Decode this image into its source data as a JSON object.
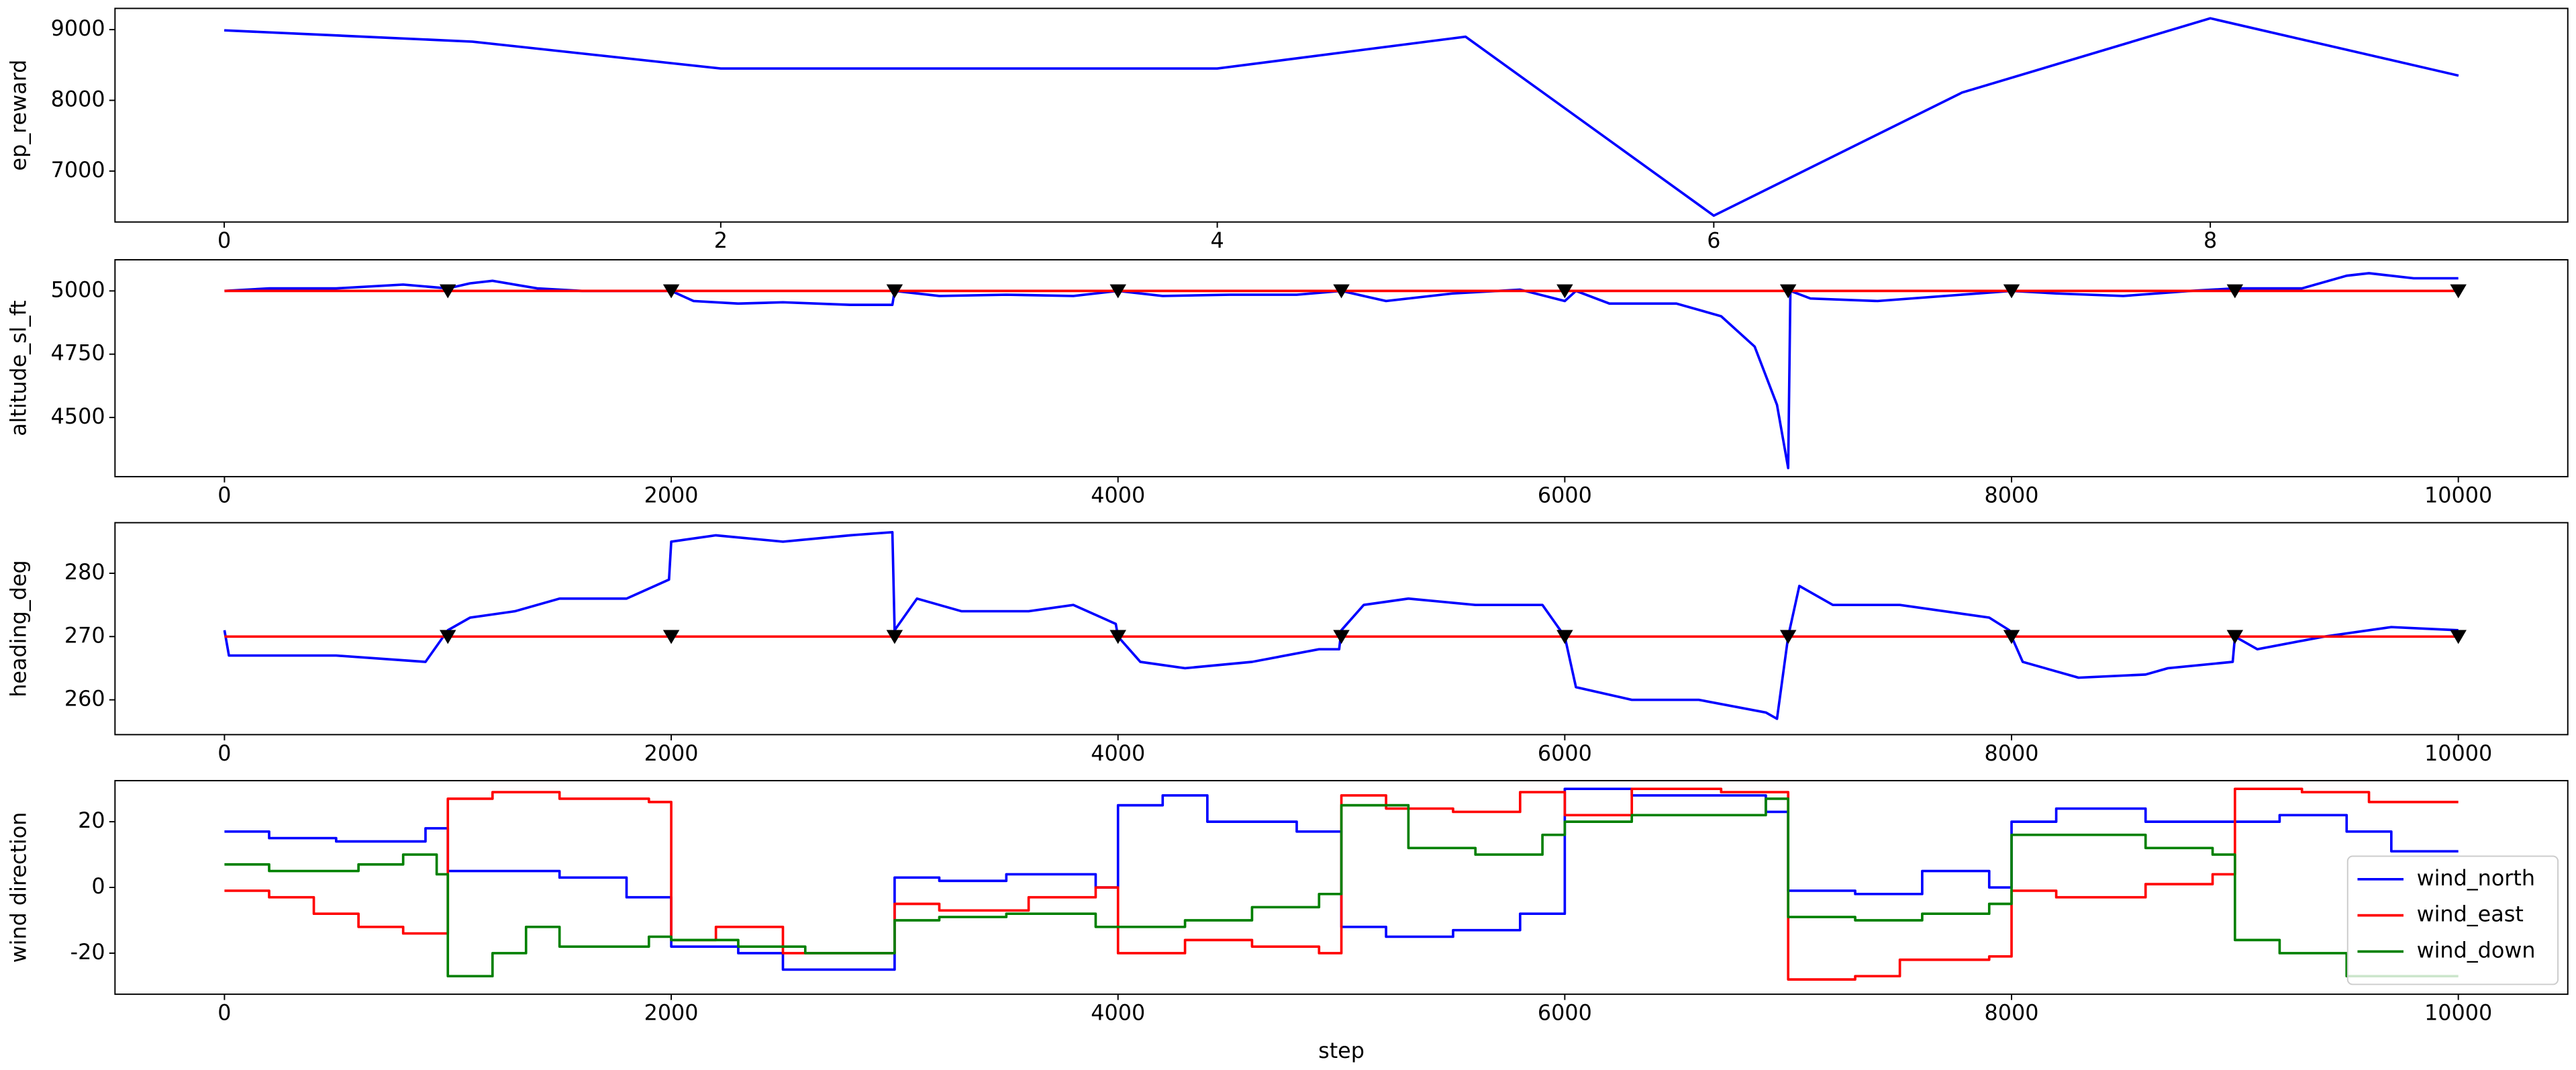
{
  "chart_data": [
    {
      "type": "line",
      "ylabel": "ep_reward",
      "xlim": [
        -0.44,
        9.44
      ],
      "xticks": [
        0,
        2,
        4,
        6,
        8
      ],
      "ylim": [
        6280,
        9300
      ],
      "yticks": [
        7000,
        8000,
        9000
      ],
      "series": [
        {
          "color": "#0000ff",
          "x": [
            0,
            1,
            2,
            3,
            4,
            5,
            6,
            7,
            8,
            9
          ],
          "values": [
            8990,
            8830,
            8450,
            8450,
            8450,
            8900,
            6370,
            8110,
            9160,
            8350
          ]
        }
      ]
    },
    {
      "type": "line",
      "ylabel": "altitude_sl_ft",
      "xlim": [
        -490,
        10490
      ],
      "xticks": [
        0,
        2000,
        4000,
        6000,
        8000,
        10000
      ],
      "ylim": [
        4266,
        5123
      ],
      "yticks": [
        4500,
        4750,
        5000
      ],
      "series": [
        {
          "color": "#0000ff",
          "x": [
            0,
            200,
            500,
            800,
            1000,
            1100,
            1200,
            1400,
            1600,
            1800,
            2000,
            2100,
            2300,
            2500,
            2800,
            2990,
            3000,
            3200,
            3500,
            3800,
            4000,
            4200,
            4500,
            4800,
            5000,
            5200,
            5500,
            5800,
            6000,
            6050,
            6200,
            6500,
            6700,
            6850,
            6950,
            7000,
            7010,
            7100,
            7400,
            7700,
            8000,
            8200,
            8500,
            8800,
            9000,
            9300,
            9500,
            9600,
            9800,
            10000
          ],
          "values": [
            5000,
            5010,
            5010,
            5025,
            5010,
            5030,
            5040,
            5010,
            5000,
            5000,
            5000,
            4960,
            4950,
            4955,
            4945,
            4945,
            5000,
            4980,
            4985,
            4980,
            5000,
            4980,
            4985,
            4985,
            5000,
            4960,
            4990,
            5005,
            4960,
            5000,
            4950,
            4950,
            4900,
            4780,
            4550,
            4300,
            5000,
            4970,
            4960,
            4980,
            5000,
            4990,
            4980,
            5000,
            5010,
            5010,
            5060,
            5070,
            5050,
            5050
          ]
        },
        {
          "color": "#ff0000",
          "x": [
            0,
            10000
          ],
          "values": [
            5000,
            5000
          ]
        },
        {
          "color": "#000000",
          "marker": "v",
          "linestyle": "none",
          "x": [
            1000,
            2000,
            3000,
            4000,
            5000,
            6000,
            7000,
            8000,
            9000,
            10000
          ],
          "values": [
            5000,
            5000,
            5000,
            5000,
            5000,
            5000,
            5000,
            5000,
            5000,
            5000
          ]
        }
      ]
    },
    {
      "type": "line",
      "ylabel": "heading_deg",
      "xlim": [
        -490,
        10490
      ],
      "xticks": [
        0,
        2000,
        4000,
        6000,
        8000,
        10000
      ],
      "ylim": [
        254.5,
        288
      ],
      "yticks": [
        260,
        270,
        280
      ],
      "series": [
        {
          "color": "#0000ff",
          "x": [
            0,
            20,
            500,
            900,
            1000,
            1100,
            1300,
            1500,
            1800,
            1990,
            2000,
            2200,
            2500,
            2800,
            2990,
            3000,
            3100,
            3300,
            3600,
            3800,
            3990,
            4000,
            4100,
            4300,
            4600,
            4900,
            4990,
            5000,
            5100,
            5300,
            5600,
            5900,
            6000,
            6050,
            6300,
            6600,
            6900,
            6950,
            7000,
            7050,
            7200,
            7500,
            7900,
            7990,
            8000,
            8050,
            8300,
            8600,
            8700,
            8990,
            9000,
            9100,
            9400,
            9700,
            10000
          ],
          "values": [
            271,
            267,
            267,
            266,
            271,
            273,
            274,
            276,
            276,
            279,
            285,
            286,
            285,
            286,
            286.5,
            271,
            276,
            274,
            274,
            275,
            272,
            270,
            266,
            265,
            266,
            268,
            268,
            271,
            275,
            276,
            275,
            275,
            270,
            262,
            260,
            260,
            258,
            257,
            270,
            278,
            275,
            275,
            273,
            271,
            270,
            266,
            263.5,
            264,
            265,
            266,
            270,
            268,
            270,
            271.5,
            271
          ]
        },
        {
          "color": "#ff0000",
          "x": [
            0,
            10000
          ],
          "values": [
            270,
            270
          ]
        },
        {
          "color": "#000000",
          "marker": "v",
          "linestyle": "none",
          "x": [
            1000,
            2000,
            3000,
            4000,
            5000,
            6000,
            7000,
            8000,
            9000,
            10000
          ],
          "values": [
            270,
            270,
            270,
            270,
            270,
            270,
            270,
            270,
            270,
            270
          ]
        }
      ]
    },
    {
      "type": "line",
      "ylabel": "wind direction",
      "xlabel": "step",
      "drawstyle": "steps-post",
      "legend": "lower right",
      "xlim": [
        -490,
        10490
      ],
      "xticks": [
        0,
        2000,
        4000,
        6000,
        8000,
        10000
      ],
      "ylim": [
        -32.5,
        32.5
      ],
      "yticks": [
        -20,
        0,
        20
      ],
      "series": [
        {
          "name": "wind_north",
          "color": "#0000ff",
          "x": [
            0,
            200,
            500,
            700,
            900,
            1000,
            1200,
            1500,
            1800,
            2000,
            2300,
            2500,
            3000,
            3200,
            3500,
            3900,
            4000,
            4200,
            4400,
            4800,
            5000,
            5200,
            5500,
            5800,
            6000,
            6300,
            6600,
            6900,
            7000,
            7300,
            7600,
            7900,
            8000,
            8200,
            8600,
            9000,
            9200,
            9500,
            9700,
            10000
          ],
          "values": [
            17,
            15,
            14,
            14,
            18,
            5,
            5,
            3,
            -3,
            -18,
            -20,
            -25,
            3,
            2,
            4,
            0,
            25,
            28,
            20,
            17,
            -12,
            -15,
            -13,
            -8,
            30,
            28,
            28,
            23,
            -1,
            -2,
            5,
            0,
            20,
            24,
            20,
            20,
            22,
            17,
            11,
            11
          ]
        },
        {
          "name": "wind_east",
          "color": "#ff0000",
          "x": [
            0,
            200,
            400,
            600,
            800,
            1000,
            1200,
            1500,
            1900,
            2000,
            2200,
            2500,
            3000,
            3200,
            3600,
            3900,
            4000,
            4300,
            4600,
            4900,
            5000,
            5200,
            5500,
            5800,
            6000,
            6300,
            6700,
            6950,
            7000,
            7300,
            7500,
            7900,
            8000,
            8200,
            8600,
            8900,
            9000,
            9300,
            9600,
            10000
          ],
          "values": [
            -1,
            -3,
            -8,
            -12,
            -14,
            27,
            29,
            27,
            26,
            -16,
            -12,
            -20,
            -5,
            -7,
            -3,
            0,
            -20,
            -16,
            -18,
            -20,
            28,
            24,
            23,
            29,
            22,
            30,
            29,
            29,
            -28,
            -27,
            -22,
            -21,
            -1,
            -3,
            1,
            4,
            30,
            29,
            26,
            26
          ]
        },
        {
          "name": "wind_down",
          "color": "#008000",
          "x": [
            0,
            200,
            600,
            800,
            950,
            1000,
            1200,
            1350,
            1500,
            1900,
            2000,
            2300,
            2600,
            3000,
            3200,
            3500,
            3900,
            4000,
            4300,
            4600,
            4900,
            5000,
            5300,
            5600,
            5900,
            6000,
            6300,
            6600,
            6900,
            7000,
            7300,
            7600,
            7900,
            8000,
            8300,
            8600,
            8900,
            9000,
            9200,
            9500,
            9800,
            10000
          ],
          "values": [
            7,
            5,
            7,
            10,
            4,
            -27,
            -20,
            -12,
            -18,
            -15,
            -16,
            -18,
            -20,
            -10,
            -9,
            -8,
            -12,
            -12,
            -10,
            -6,
            -2,
            25,
            12,
            10,
            16,
            20,
            22,
            22,
            27,
            -9,
            -10,
            -8,
            -5,
            16,
            16,
            12,
            10,
            -16,
            -20,
            -27,
            -27,
            -27
          ]
        }
      ]
    }
  ]
}
